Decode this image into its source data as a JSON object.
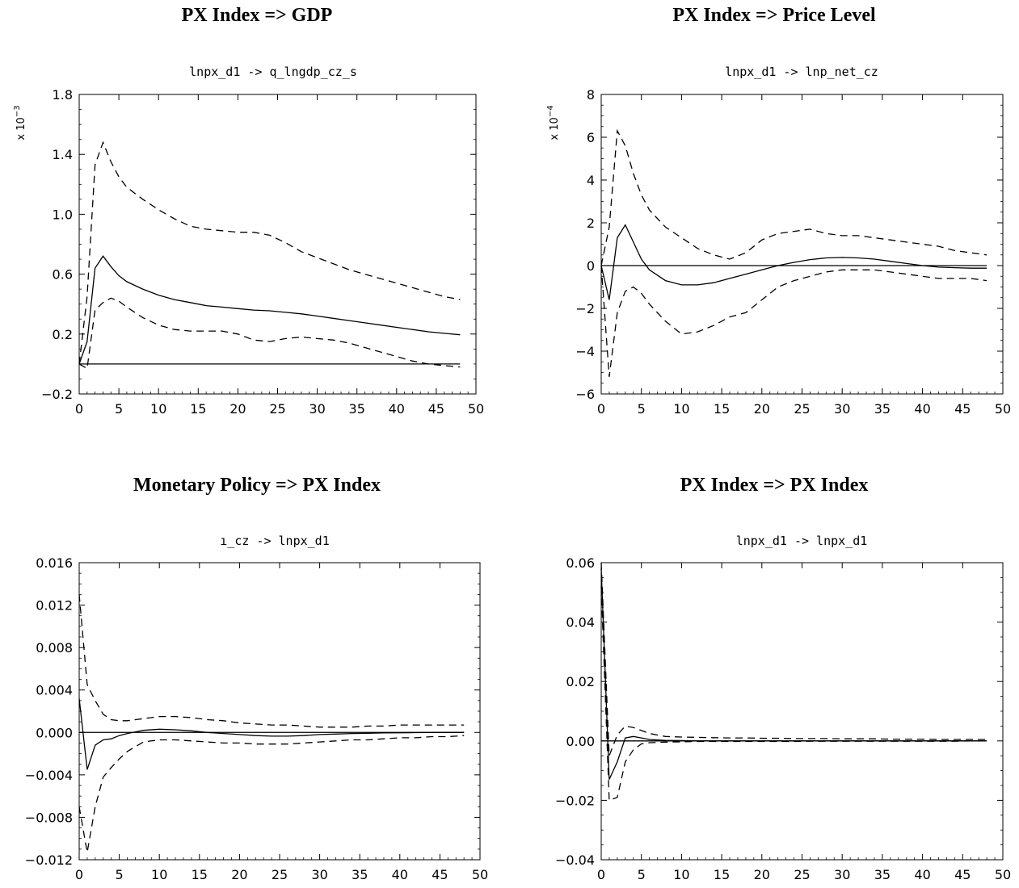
{
  "chart_data": [
    {
      "type": "line",
      "title": "PX Index => GDP",
      "subtitle": "lnpx_d1 -> q_lngdp_cz_s",
      "scale_label": "x 10",
      "scale_exp": "−3",
      "xlim": [
        0,
        50
      ],
      "ylim": [
        -0.2,
        1.8
      ],
      "x_ticks": [
        0,
        5,
        10,
        15,
        20,
        25,
        30,
        35,
        40,
        45,
        50
      ],
      "y_ticks": [
        -0.2,
        0.2,
        0.6,
        1.0,
        1.4,
        1.8
      ],
      "y_tick_labels": [
        "−0.2",
        "0.2",
        "0.6",
        "1.0",
        "1.4",
        "1.8"
      ],
      "zero_line": true,
      "series": [
        {
          "style": "solid",
          "x": [
            0,
            1,
            2,
            3,
            4,
            5,
            6,
            8,
            10,
            12,
            14,
            16,
            18,
            20,
            22,
            24,
            26,
            28,
            30,
            32,
            34,
            36,
            38,
            40,
            42,
            44,
            46,
            48
          ],
          "values": [
            0.0,
            0.15,
            0.64,
            0.72,
            0.65,
            0.59,
            0.55,
            0.5,
            0.46,
            0.43,
            0.41,
            0.39,
            0.38,
            0.37,
            0.36,
            0.355,
            0.345,
            0.335,
            0.32,
            0.305,
            0.29,
            0.275,
            0.26,
            0.245,
            0.23,
            0.215,
            0.205,
            0.195
          ]
        },
        {
          "style": "dashed",
          "x": [
            0,
            1,
            2,
            3,
            4,
            5,
            6,
            8,
            10,
            12,
            14,
            16,
            18,
            20,
            22,
            24,
            26,
            28,
            30,
            32,
            34,
            36,
            38,
            40,
            42,
            44,
            46,
            48
          ],
          "values": [
            0.0,
            0.45,
            1.33,
            1.48,
            1.35,
            1.25,
            1.18,
            1.1,
            1.03,
            0.97,
            0.92,
            0.9,
            0.89,
            0.88,
            0.88,
            0.86,
            0.81,
            0.75,
            0.71,
            0.67,
            0.63,
            0.6,
            0.57,
            0.54,
            0.51,
            0.48,
            0.45,
            0.43
          ]
        },
        {
          "style": "dashed",
          "x": [
            0,
            1,
            2,
            3,
            4,
            5,
            6,
            8,
            10,
            12,
            14,
            16,
            18,
            20,
            22,
            24,
            26,
            28,
            30,
            32,
            34,
            36,
            38,
            40,
            42,
            44,
            46,
            48
          ],
          "values": [
            0.0,
            -0.03,
            0.36,
            0.41,
            0.44,
            0.42,
            0.38,
            0.31,
            0.26,
            0.23,
            0.22,
            0.22,
            0.22,
            0.2,
            0.16,
            0.15,
            0.17,
            0.18,
            0.17,
            0.16,
            0.14,
            0.11,
            0.08,
            0.05,
            0.02,
            0.0,
            -0.01,
            -0.02
          ]
        }
      ]
    },
    {
      "type": "line",
      "title": "PX Index => Price Level",
      "subtitle": "lnpx_d1 -> lnp_net_cz",
      "scale_label": "x 10",
      "scale_exp": "−4",
      "xlim": [
        0,
        50
      ],
      "ylim": [
        -6,
        8
      ],
      "x_ticks": [
        0,
        5,
        10,
        15,
        20,
        25,
        30,
        35,
        40,
        45,
        50
      ],
      "y_ticks": [
        -6,
        -4,
        -2,
        0,
        2,
        4,
        6,
        8
      ],
      "y_tick_labels": [
        "−6",
        "−4",
        "−2",
        "0",
        "2",
        "4",
        "6",
        "8"
      ],
      "zero_line": true,
      "series": [
        {
          "style": "solid",
          "x": [
            0,
            1,
            2,
            3,
            4,
            5,
            6,
            8,
            10,
            12,
            14,
            16,
            18,
            20,
            22,
            24,
            26,
            28,
            30,
            32,
            34,
            36,
            38,
            40,
            42,
            44,
            46,
            48
          ],
          "values": [
            0.0,
            -1.6,
            1.3,
            1.9,
            1.1,
            0.3,
            -0.2,
            -0.7,
            -0.9,
            -0.9,
            -0.8,
            -0.6,
            -0.4,
            -0.2,
            0.0,
            0.15,
            0.28,
            0.36,
            0.38,
            0.36,
            0.3,
            0.2,
            0.1,
            0.0,
            -0.07,
            -0.1,
            -0.12,
            -0.12
          ]
        },
        {
          "style": "dashed",
          "x": [
            0,
            1,
            2,
            3,
            4,
            5,
            6,
            8,
            10,
            12,
            14,
            16,
            18,
            20,
            22,
            24,
            26,
            28,
            30,
            32,
            34,
            36,
            38,
            40,
            42,
            44,
            46,
            48
          ],
          "values": [
            0.0,
            1.8,
            6.3,
            5.6,
            4.3,
            3.3,
            2.6,
            1.8,
            1.3,
            0.8,
            0.5,
            0.3,
            0.6,
            1.2,
            1.5,
            1.6,
            1.7,
            1.5,
            1.4,
            1.4,
            1.3,
            1.2,
            1.1,
            1.0,
            0.9,
            0.7,
            0.6,
            0.5
          ]
        },
        {
          "style": "dashed",
          "x": [
            0,
            1,
            2,
            3,
            4,
            5,
            6,
            8,
            10,
            12,
            14,
            16,
            18,
            20,
            22,
            24,
            26,
            28,
            30,
            32,
            34,
            36,
            38,
            40,
            42,
            44,
            46,
            48
          ],
          "values": [
            0.0,
            -5.2,
            -2.2,
            -1.2,
            -1.0,
            -1.3,
            -1.8,
            -2.6,
            -3.2,
            -3.1,
            -2.8,
            -2.4,
            -2.2,
            -1.6,
            -1.0,
            -0.7,
            -0.5,
            -0.3,
            -0.2,
            -0.2,
            -0.2,
            -0.3,
            -0.4,
            -0.5,
            -0.6,
            -0.6,
            -0.6,
            -0.7
          ]
        }
      ]
    },
    {
      "type": "line",
      "title": "Monetary Policy => PX Index",
      "subtitle": "ı_cz -> lnpx_d1",
      "scale_label": "",
      "scale_exp": "",
      "xlim": [
        0,
        50
      ],
      "ylim": [
        -0.012,
        0.016
      ],
      "x_ticks": [
        0,
        5,
        10,
        15,
        20,
        25,
        30,
        35,
        40,
        45,
        50
      ],
      "y_ticks": [
        -0.012,
        -0.008,
        -0.004,
        0.0,
        0.004,
        0.008,
        0.012,
        0.016
      ],
      "y_tick_labels": [
        "−0.012",
        "−0.008",
        "−0.004",
        "0.000",
        "0.004",
        "0.008",
        "0.012",
        "0.016"
      ],
      "zero_line": true,
      "series": [
        {
          "style": "solid",
          "x": [
            0,
            1,
            2,
            3,
            4,
            5,
            6,
            8,
            10,
            12,
            14,
            16,
            18,
            20,
            22,
            24,
            26,
            28,
            30,
            32,
            34,
            36,
            38,
            40,
            42,
            44,
            46,
            48
          ],
          "values": [
            0.0032,
            -0.0035,
            -0.0012,
            -0.0007,
            -0.0006,
            -0.0003,
            -0.0001,
            0.0002,
            0.0003,
            0.00025,
            0.00015,
            0.0,
            -0.0001,
            -0.0002,
            -0.0003,
            -0.00035,
            -0.00035,
            -0.0003,
            -0.0002,
            -0.00015,
            -0.0001,
            -8e-05,
            -5e-05,
            -3e-05,
            -2e-05,
            -1e-05,
            0.0,
            0.0
          ]
        },
        {
          "style": "dashed",
          "x": [
            0,
            1,
            2,
            3,
            4,
            5,
            6,
            8,
            10,
            12,
            14,
            16,
            18,
            20,
            22,
            24,
            26,
            28,
            30,
            32,
            34,
            36,
            38,
            40,
            42,
            44,
            46,
            48
          ],
          "values": [
            0.013,
            0.0045,
            0.003,
            0.0017,
            0.0012,
            0.0011,
            0.0011,
            0.0013,
            0.0015,
            0.0015,
            0.0014,
            0.0012,
            0.0011,
            0.0009,
            0.0008,
            0.0007,
            0.0007,
            0.0006,
            0.0005,
            0.0005,
            0.0005,
            0.0006,
            0.0006,
            0.0007,
            0.0007,
            0.0007,
            0.0007,
            0.0007
          ]
        },
        {
          "style": "dashed",
          "x": [
            0,
            1,
            2,
            3,
            4,
            5,
            6,
            8,
            10,
            12,
            14,
            16,
            18,
            20,
            22,
            24,
            26,
            28,
            30,
            32,
            34,
            36,
            38,
            40,
            42,
            44,
            46,
            48
          ],
          "values": [
            -0.007,
            -0.0113,
            -0.007,
            -0.0042,
            -0.0033,
            -0.0025,
            -0.0018,
            -0.0009,
            -0.0007,
            -0.0007,
            -0.0008,
            -0.0009,
            -0.001,
            -0.001,
            -0.0011,
            -0.0011,
            -0.0011,
            -0.001,
            -0.0009,
            -0.0008,
            -0.0007,
            -0.0007,
            -0.0006,
            -0.0005,
            -0.0005,
            -0.0004,
            -0.0004,
            -0.0003
          ]
        }
      ]
    },
    {
      "type": "line",
      "title": "PX Index => PX Index",
      "subtitle": "lnpx_d1 -> lnpx_d1",
      "scale_label": "",
      "scale_exp": "",
      "xlim": [
        0,
        50
      ],
      "ylim": [
        -0.04,
        0.06
      ],
      "x_ticks": [
        0,
        5,
        10,
        15,
        20,
        25,
        30,
        35,
        40,
        45,
        50
      ],
      "y_ticks": [
        -0.04,
        -0.02,
        0.0,
        0.02,
        0.04,
        0.06
      ],
      "y_tick_labels": [
        "−0.04",
        "−0.02",
        "0.00",
        "0.02",
        "0.04",
        "0.06"
      ],
      "zero_line": true,
      "series": [
        {
          "style": "solid",
          "x": [
            0,
            1,
            2,
            3,
            4,
            5,
            6,
            8,
            10,
            12,
            14,
            16,
            18,
            20,
            22,
            24,
            26,
            28,
            30,
            32,
            34,
            36,
            38,
            40,
            42,
            44,
            46,
            48
          ],
          "values": [
            0.058,
            -0.013,
            -0.007,
            0.001,
            0.0015,
            0.001,
            0.0005,
            0.0002,
            0.0001,
            0.0,
            0.0,
            0.0,
            0.0,
            0.0,
            0.0,
            0.0,
            0.0,
            0.0,
            0.0,
            0.0,
            0.0,
            0.0,
            0.0,
            0.0,
            0.0,
            0.0,
            0.0,
            0.0
          ]
        },
        {
          "style": "dashed",
          "x": [
            0,
            1,
            2,
            3,
            4,
            5,
            6,
            8,
            10,
            12,
            14,
            16,
            18,
            20,
            22,
            24,
            26,
            28,
            30,
            32,
            34,
            36,
            38,
            40,
            42,
            44,
            46,
            48
          ],
          "values": [
            0.06,
            -0.005,
            0.002,
            0.005,
            0.0045,
            0.0035,
            0.0025,
            0.0015,
            0.0013,
            0.0012,
            0.0011,
            0.001,
            0.001,
            0.0009,
            0.0009,
            0.0008,
            0.0008,
            0.0008,
            0.0007,
            0.0007,
            0.0007,
            0.0006,
            0.0006,
            0.0006,
            0.0005,
            0.0005,
            0.0005,
            0.0005
          ]
        },
        {
          "style": "dashed",
          "x": [
            0,
            1,
            2,
            3,
            4,
            5,
            6,
            8,
            10,
            12,
            14,
            16,
            18,
            20,
            22,
            24,
            26,
            28,
            30,
            32,
            34,
            36,
            38,
            40,
            42,
            44,
            46,
            48
          ],
          "values": [
            0.052,
            -0.02,
            -0.019,
            -0.007,
            -0.003,
            -0.001,
            -0.0006,
            -0.0004,
            -0.0003,
            -0.0002,
            -0.0002,
            -0.0002,
            -0.0002,
            -0.0002,
            -0.0002,
            -0.0002,
            -0.0001,
            -0.0001,
            -0.0001,
            -0.0001,
            -0.0001,
            -0.0001,
            -0.0001,
            -0.0001,
            -0.0001,
            -0.0001,
            0.0,
            0.0
          ]
        }
      ]
    }
  ]
}
